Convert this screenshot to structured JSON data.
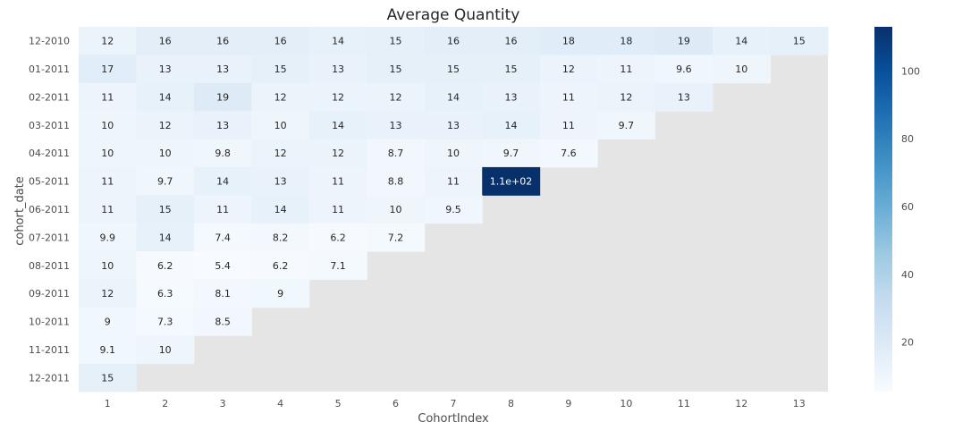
{
  "chart_data": {
    "type": "heatmap",
    "title": "Average Quantity",
    "xlabel": "CohortIndex",
    "ylabel": "cohort_date",
    "x_categories": [
      "1",
      "2",
      "3",
      "4",
      "5",
      "6",
      "7",
      "8",
      "9",
      "10",
      "11",
      "12",
      "13"
    ],
    "y_categories": [
      "12-2010",
      "01-2011",
      "02-2011",
      "03-2011",
      "04-2011",
      "05-2011",
      "06-2011",
      "07-2011",
      "08-2011",
      "09-2011",
      "10-2011",
      "11-2011",
      "12-2011"
    ],
    "values": [
      [
        12,
        16,
        16,
        16,
        14,
        15,
        16,
        16,
        18,
        18,
        19,
        14,
        15
      ],
      [
        17,
        13,
        13,
        15,
        13,
        15,
        15,
        15,
        12,
        11,
        9.6,
        10,
        null
      ],
      [
        11,
        14,
        19,
        12,
        12,
        12,
        14,
        13,
        11,
        12,
        13,
        null,
        null
      ],
      [
        10,
        12,
        13,
        10,
        14,
        13,
        13,
        14,
        11,
        9.7,
        null,
        null,
        null
      ],
      [
        10,
        10,
        9.8,
        12,
        12,
        8.7,
        10,
        9.7,
        7.6,
        null,
        null,
        null,
        null
      ],
      [
        11,
        9.7,
        14,
        13,
        11,
        8.8,
        11,
        113,
        null,
        null,
        null,
        null,
        null
      ],
      [
        11,
        15,
        11,
        14,
        11,
        10,
        9.5,
        null,
        null,
        null,
        null,
        null,
        null
      ],
      [
        9.9,
        14,
        7.4,
        8.2,
        6.2,
        7.2,
        null,
        null,
        null,
        null,
        null,
        null,
        null
      ],
      [
        10,
        6.2,
        5.4,
        6.2,
        7.1,
        null,
        null,
        null,
        null,
        null,
        null,
        null,
        null
      ],
      [
        12,
        6.3,
        8.1,
        9,
        null,
        null,
        null,
        null,
        null,
        null,
        null,
        null,
        null
      ],
      [
        9,
        7.3,
        8.5,
        null,
        null,
        null,
        null,
        null,
        null,
        null,
        null,
        null,
        null
      ],
      [
        9.1,
        10,
        null,
        null,
        null,
        null,
        null,
        null,
        null,
        null,
        null,
        null,
        null
      ],
      [
        15,
        null,
        null,
        null,
        null,
        null,
        null,
        null,
        null,
        null,
        null,
        null,
        null
      ]
    ],
    "cell_labels": [
      [
        "12",
        "16",
        "16",
        "16",
        "14",
        "15",
        "16",
        "16",
        "18",
        "18",
        "19",
        "14",
        "15"
      ],
      [
        "17",
        "13",
        "13",
        "15",
        "13",
        "15",
        "15",
        "15",
        "12",
        "11",
        "9.6",
        "10"
      ],
      [
        "11",
        "14",
        "19",
        "12",
        "12",
        "12",
        "14",
        "13",
        "11",
        "12",
        "13"
      ],
      [
        "10",
        "12",
        "13",
        "10",
        "14",
        "13",
        "13",
        "14",
        "11",
        "9.7"
      ],
      [
        "10",
        "10",
        "9.8",
        "12",
        "12",
        "8.7",
        "10",
        "9.7",
        "7.6"
      ],
      [
        "11",
        "9.7",
        "14",
        "13",
        "11",
        "8.8",
        "11",
        "1.1e+02"
      ],
      [
        "11",
        "15",
        "11",
        "14",
        "11",
        "10",
        "9.5"
      ],
      [
        "9.9",
        "14",
        "7.4",
        "8.2",
        "6.2",
        "7.2"
      ],
      [
        "10",
        "6.2",
        "5.4",
        "6.2",
        "7.1"
      ],
      [
        "12",
        "6.3",
        "8.1",
        "9"
      ],
      [
        "9",
        "7.3",
        "8.5"
      ],
      [
        "9.1",
        "10"
      ],
      [
        "15"
      ]
    ],
    "colormap": "Blues",
    "vmin": 5.4,
    "vmax": 113,
    "colorbar_ticks": [
      "20",
      "40",
      "60",
      "80",
      "100"
    ],
    "missing_color": "#e5e5e5",
    "grid": false
  }
}
